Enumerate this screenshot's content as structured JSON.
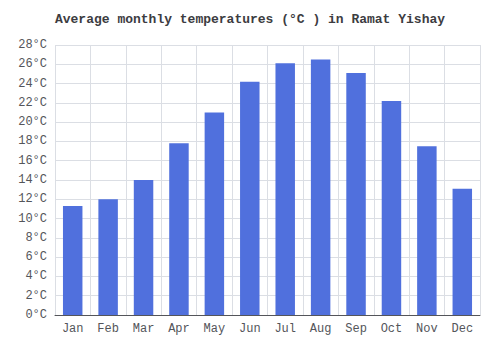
{
  "chart_data": {
    "type": "bar",
    "title": "Average monthly temperatures (°C ) in Ramat Yishay",
    "categories": [
      "Jan",
      "Feb",
      "Mar",
      "Apr",
      "May",
      "Jun",
      "Jul",
      "Aug",
      "Sep",
      "Oct",
      "Nov",
      "Dec"
    ],
    "values": [
      11.3,
      12.0,
      14.0,
      17.8,
      21.0,
      24.2,
      26.1,
      26.5,
      25.1,
      22.2,
      17.5,
      13.1
    ],
    "ylim": [
      0,
      28
    ],
    "yticks": [
      {
        "value": 0,
        "label": "0°C"
      },
      {
        "value": 2,
        "label": "2°C"
      },
      {
        "value": 4,
        "label": "4°C"
      },
      {
        "value": 6,
        "label": "6°C"
      },
      {
        "value": 8,
        "label": "8°C"
      },
      {
        "value": 10,
        "label": "10°C"
      },
      {
        "value": 12,
        "label": "12°C"
      },
      {
        "value": 14,
        "label": "14°C"
      },
      {
        "value": 16,
        "label": "16°C"
      },
      {
        "value": 18,
        "label": "18°C"
      },
      {
        "value": 20,
        "label": "20°C"
      },
      {
        "value": 22,
        "label": "22°C"
      },
      {
        "value": 24,
        "label": "24°C"
      },
      {
        "value": 26,
        "label": "26°C"
      },
      {
        "value": 28,
        "label": "28°C"
      }
    ],
    "grid": true
  }
}
